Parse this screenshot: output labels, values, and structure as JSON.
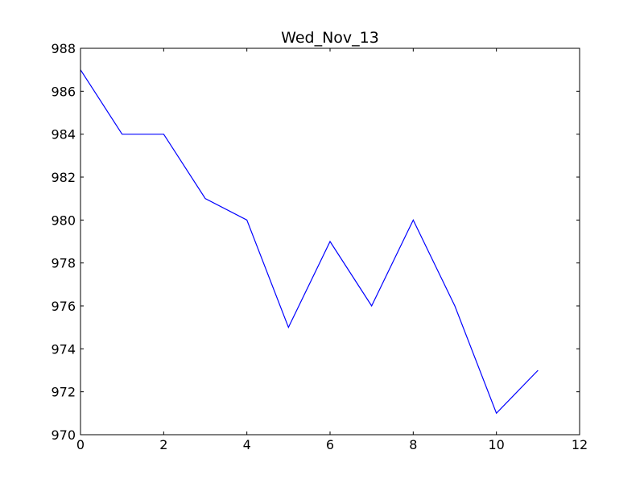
{
  "chart_data": {
    "type": "line",
    "title": "Wed_Nov_13",
    "xlabel": "",
    "ylabel": "",
    "xlim": [
      0,
      12
    ],
    "ylim": [
      970,
      988
    ],
    "xticks": [
      0,
      2,
      4,
      6,
      8,
      10,
      12
    ],
    "yticks": [
      970,
      972,
      974,
      976,
      978,
      980,
      982,
      984,
      986,
      988
    ],
    "grid": false,
    "legend": "none",
    "series": [
      {
        "color": "#0000ff",
        "x": [
          0,
          1,
          2,
          3,
          4,
          5,
          6,
          7,
          8,
          9,
          10,
          11
        ],
        "y": [
          987,
          984,
          984,
          981,
          980,
          975,
          979,
          976,
          980,
          976,
          971,
          973
        ]
      }
    ]
  }
}
